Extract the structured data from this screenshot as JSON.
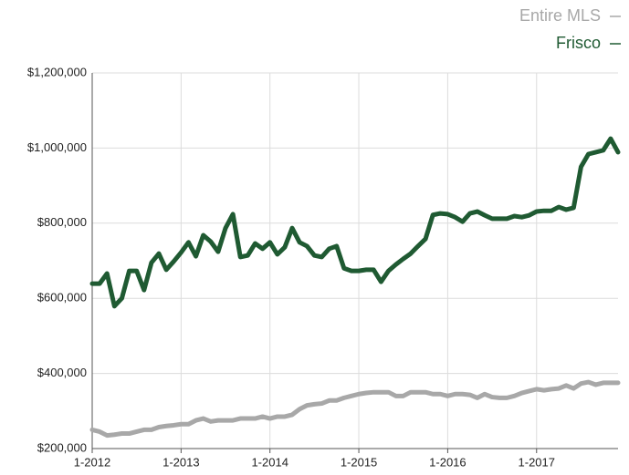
{
  "chart_data": {
    "type": "line",
    "categories": [
      "1-2012",
      null,
      null,
      null,
      null,
      null,
      null,
      null,
      null,
      null,
      null,
      null,
      "1-2013",
      null,
      null,
      null,
      null,
      null,
      null,
      null,
      null,
      null,
      null,
      null,
      "1-2014",
      null,
      null,
      null,
      null,
      null,
      null,
      null,
      null,
      null,
      null,
      null,
      "1-2015",
      null,
      null,
      null,
      null,
      null,
      null,
      null,
      null,
      null,
      null,
      null,
      "1-2016",
      null,
      null,
      null,
      null,
      null,
      null,
      null,
      null,
      null,
      null,
      null,
      "1-2017",
      null,
      null,
      null,
      null,
      null,
      null,
      null,
      null,
      null,
      null,
      null
    ],
    "series": [
      {
        "name": "Entire MLS",
        "color": "#a8a8a8",
        "values": [
          250000,
          245000,
          235000,
          237000,
          240000,
          240000,
          245000,
          250000,
          250000,
          257000,
          260000,
          262000,
          265000,
          265000,
          275000,
          280000,
          272000,
          275000,
          275000,
          275000,
          280000,
          280000,
          280000,
          285000,
          280000,
          285000,
          285000,
          290000,
          305000,
          315000,
          318000,
          320000,
          328000,
          328000,
          335000,
          340000,
          345000,
          348000,
          350000,
          350000,
          350000,
          340000,
          340000,
          350000,
          350000,
          350000,
          345000,
          345000,
          340000,
          345000,
          345000,
          343000,
          335000,
          345000,
          337000,
          335000,
          335000,
          340000,
          348000,
          353000,
          358000,
          355000,
          358000,
          360000,
          368000,
          360000,
          373000,
          377000,
          370000,
          375000,
          375000,
          375000
        ]
      },
      {
        "name": "Frisco",
        "color": "#1f5a32",
        "values": [
          639000,
          639000,
          666000,
          579000,
          600000,
          673000,
          673000,
          622000,
          695000,
          719000,
          676000,
          698000,
          722000,
          749000,
          712000,
          768000,
          751000,
          724000,
          787000,
          824000,
          710000,
          714000,
          746000,
          732000,
          749000,
          717000,
          736000,
          787000,
          749000,
          739000,
          714000,
          710000,
          732000,
          739000,
          680000,
          673000,
          673000,
          676000,
          676000,
          644000,
          673000,
          690000,
          705000,
          719000,
          739000,
          758000,
          822000,
          826000,
          824000,
          816000,
          804000,
          826000,
          831000,
          821000,
          812000,
          812000,
          812000,
          819000,
          816000,
          821000,
          831000,
          833000,
          833000,
          843000,
          836000,
          841000,
          950000,
          984000,
          989000,
          994000,
          1025000,
          989000
        ]
      }
    ],
    "ylim": [
      200000,
      1200000
    ],
    "yticks": [
      {
        "value": 200000,
        "label": "$200,000"
      },
      {
        "value": 400000,
        "label": "$400,000"
      },
      {
        "value": 600000,
        "label": "$600,000"
      },
      {
        "value": 800000,
        "label": "$800,000"
      },
      {
        "value": 1000000,
        "label": "$1,000,000"
      },
      {
        "value": 1200000,
        "label": "$1,200,000"
      }
    ],
    "grid": true,
    "legend": "top-right"
  }
}
